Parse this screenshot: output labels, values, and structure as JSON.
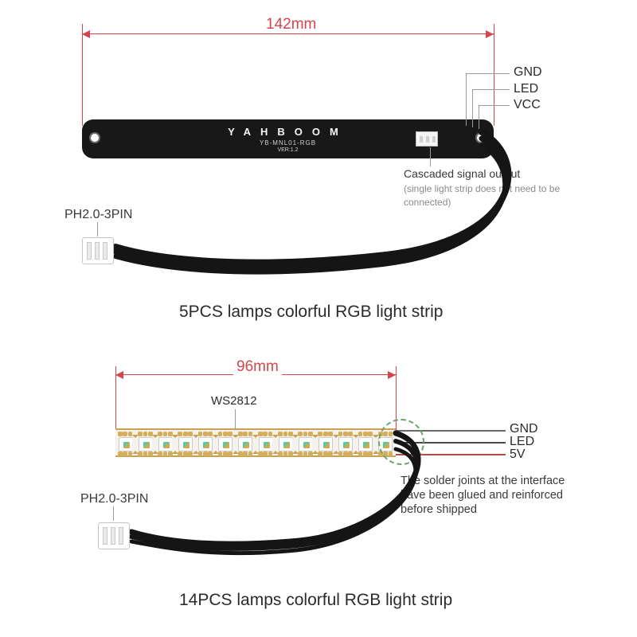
{
  "colors": {
    "dim": "#d6454c",
    "text": "#2b2b2b",
    "grey": "#8a8a8a",
    "calloutGreen": "#6aa46a",
    "stripCopper": "#d4ae5a",
    "stripBase": "#f5f2ed",
    "stripBorder": "#c8a24e",
    "pcb": "#181818",
    "wire": "#151515",
    "background": "#ffffff"
  },
  "topSection": {
    "widthLabel": "142mm",
    "pcb": {
      "brand": "YAHBOOM",
      "model": "YB-MNL01-RGB",
      "version": "VER:1.2"
    },
    "pins": [
      "GND",
      "LED",
      "VCC"
    ],
    "cascadedTitle": "Cascaded signal output",
    "cascadedSub": "(single light strip does not need to be connected)",
    "connectorLabel": "PH2.0-3PIN",
    "title": "5PCS lamps colorful RGB light strip"
  },
  "bottomSection": {
    "widthLabel": "96mm",
    "chipLabel": "WS2812",
    "ledCount": 14,
    "pins": [
      "GND",
      "LED",
      "5V"
    ],
    "solderNote": "The solder joints at the interface have been glued and reinforced before shipped",
    "connectorLabel": "PH2.0-3PIN",
    "title": "14PCS lamps colorful RGB light strip"
  },
  "typography": {
    "dimLabelFontSize": 19,
    "titleFontSize": 21,
    "noteFontSize": 14,
    "pinFontSize": 16
  }
}
